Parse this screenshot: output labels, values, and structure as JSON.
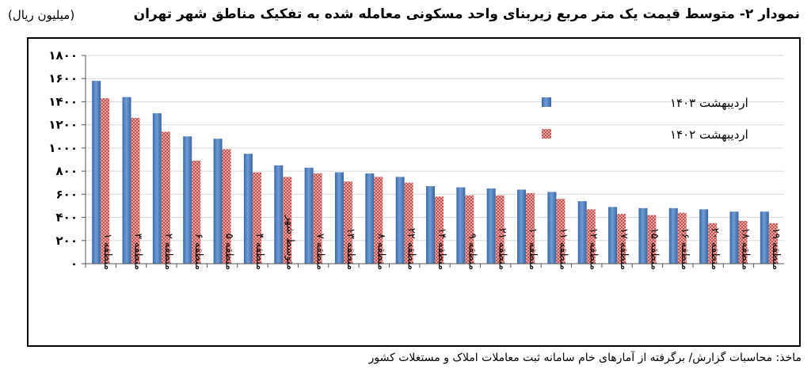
{
  "title": "نمودار ۲- متوسط قیمت یک متر مربع زیربنای واحد مسکونی معامله شده به تفکیک مناطق شهر تهران",
  "unit_label": "(میلیون ریال)",
  "source": "ماخذ: محاسبات گزارش/ برگرفته از آمارهای خام سامانه ثبت معاملات املاک و مستغلات کشور",
  "colors": {
    "series_1403": "#4f81bd",
    "series_1402": "#c0504d"
  },
  "chart_data": {
    "type": "bar",
    "ylim": [
      0,
      1800
    ],
    "y_ticks": [
      0,
      200,
      400,
      600,
      800,
      1000,
      1200,
      1400,
      1600,
      1800
    ],
    "y_tick_labels": [
      "۰",
      "۲۰۰",
      "۴۰۰",
      "۶۰۰",
      "۸۰۰",
      "۱۰۰۰",
      "۱۲۰۰",
      "۱۴۰۰",
      "۱۶۰۰",
      "۱۸۰۰"
    ],
    "grid": true,
    "legend": "right",
    "categories": [
      "منطقه ۱",
      "منطقه ۳",
      "منطقه ۲",
      "منطقه ۶",
      "منطقه ۵",
      "منطقه ۴",
      "متوسط شهر",
      "منطقه ۷",
      "منطقه ۱۳",
      "منطقه ۸",
      "منطقه ۲۲",
      "منطقه ۱۴",
      "منطقه ۹",
      "منطقه ۲۱",
      "منطقه ۱۰",
      "منطقه ۱۱",
      "منطقه ۱۲",
      "منطقه ۱۷",
      "منطقه ۱۵",
      "منطقه ۱۶",
      "منطقه ۲۰",
      "منطقه ۱۸",
      "منطقه ۱۹"
    ],
    "series": [
      {
        "name": "اردیبهشت ۱۴۰۳",
        "values": [
          1580,
          1440,
          1300,
          1100,
          1080,
          950,
          850,
          830,
          790,
          780,
          750,
          670,
          660,
          650,
          640,
          620,
          540,
          490,
          480,
          480,
          470,
          450,
          450
        ]
      },
      {
        "name": "اردیبهشت ۱۴۰۲",
        "values": [
          1430,
          1260,
          1140,
          890,
          990,
          790,
          750,
          780,
          710,
          750,
          700,
          580,
          590,
          590,
          610,
          560,
          470,
          430,
          420,
          440,
          350,
          370,
          350
        ]
      }
    ]
  }
}
